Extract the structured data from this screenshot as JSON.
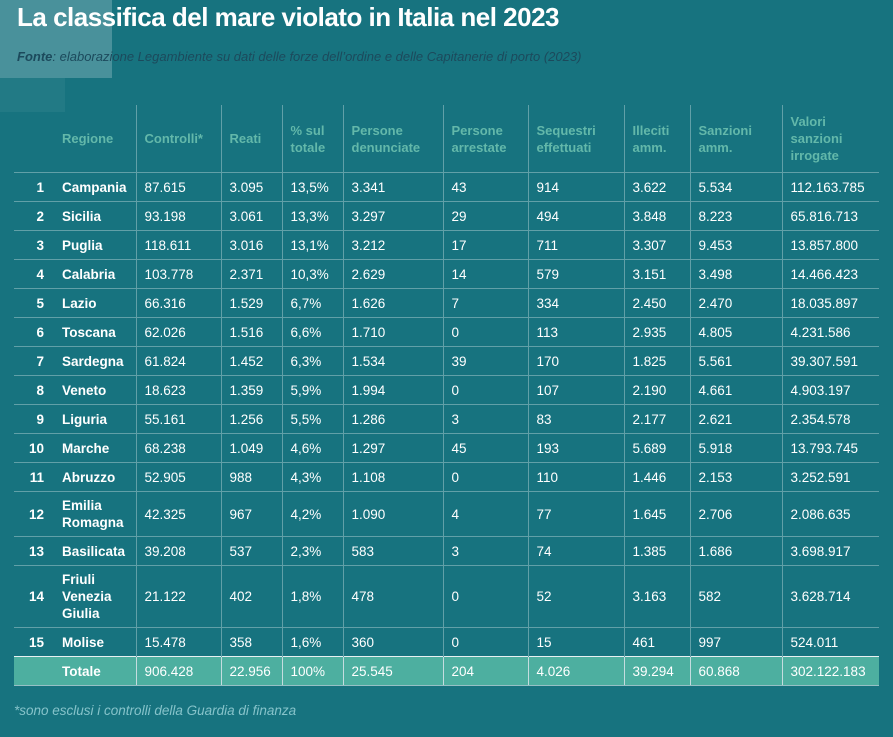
{
  "header": {
    "title": "La classifica del mare violato in Italia nel 2023",
    "source_label": "Fonte",
    "source_text": ": elaborazione Legambiente su dati delle forze dell’ordine e delle Capitanerie di porto (2023)"
  },
  "footer": {
    "note": "*sono esclusi i controlli della Guardia di finanza"
  },
  "colors": {
    "background": "#17737f",
    "title_highlight_box": "#4d96a1",
    "title_text": "#ffffff",
    "source_text": "#1c4a5c",
    "header_text": "#63b8aa",
    "cell_text": "#ffffff",
    "grid_line": "#5a9fab",
    "total_row_background": "#4dafa0",
    "footnote_text": "#86c3ca"
  },
  "chart_data": {
    "type": "table",
    "columns": [
      "Regione",
      "Controlli*",
      "Reati",
      "% sul totale",
      "Persone denunciate",
      "Persone arrestate",
      "Sequestri effettuati",
      "Illeciti amm.",
      "Sanzioni amm.",
      "Valori sanzioni irrogate"
    ],
    "rows": [
      {
        "rank": "1",
        "regione": "Campania",
        "values": [
          "87.615",
          "3.095",
          "13,5%",
          "3.341",
          "43",
          "914",
          "3.622",
          "5.534",
          "112.163.785"
        ]
      },
      {
        "rank": "2",
        "regione": "Sicilia",
        "values": [
          "93.198",
          "3.061",
          "13,3%",
          "3.297",
          "29",
          "494",
          "3.848",
          "8.223",
          "65.816.713"
        ]
      },
      {
        "rank": "3",
        "regione": "Puglia",
        "values": [
          "118.611",
          "3.016",
          "13,1%",
          "3.212",
          "17",
          "711",
          "3.307",
          "9.453",
          "13.857.800"
        ]
      },
      {
        "rank": "4",
        "regione": "Calabria",
        "values": [
          "103.778",
          "2.371",
          "10,3%",
          "2.629",
          "14",
          "579",
          "3.151",
          "3.498",
          "14.466.423"
        ]
      },
      {
        "rank": "5",
        "regione": "Lazio",
        "values": [
          "66.316",
          "1.529",
          "6,7%",
          "1.626",
          "7",
          "334",
          "2.450",
          "2.470",
          "18.035.897"
        ]
      },
      {
        "rank": "6",
        "regione": "Toscana",
        "values": [
          "62.026",
          "1.516",
          "6,6%",
          "1.710",
          "0",
          "113",
          "2.935",
          "4.805",
          "4.231.586"
        ]
      },
      {
        "rank": "7",
        "regione": "Sardegna",
        "values": [
          "61.824",
          "1.452",
          "6,3%",
          "1.534",
          "39",
          "170",
          "1.825",
          "5.561",
          "39.307.591"
        ]
      },
      {
        "rank": "8",
        "regione": "Veneto",
        "values": [
          "18.623",
          "1.359",
          "5,9%",
          "1.994",
          "0",
          "107",
          "2.190",
          "4.661",
          "4.903.197"
        ]
      },
      {
        "rank": "9",
        "regione": "Liguria",
        "values": [
          "55.161",
          "1.256",
          "5,5%",
          "1.286",
          "3",
          "83",
          "2.177",
          "2.621",
          "2.354.578"
        ]
      },
      {
        "rank": "10",
        "regione": "Marche",
        "values": [
          "68.238",
          "1.049",
          "4,6%",
          "1.297",
          "45",
          "193",
          "5.689",
          "5.918",
          "13.793.745"
        ]
      },
      {
        "rank": "11",
        "regione": "Abruzzo",
        "values": [
          "52.905",
          "988",
          "4,3%",
          "1.108",
          "0",
          "110",
          "1.446",
          "2.153",
          "3.252.591"
        ]
      },
      {
        "rank": "12",
        "regione": "Emilia Romagna",
        "values": [
          "42.325",
          "967",
          "4,2%",
          "1.090",
          "4",
          "77",
          "1.645",
          "2.706",
          "2.086.635"
        ]
      },
      {
        "rank": "13",
        "regione": "Basilicata",
        "values": [
          "39.208",
          "537",
          "2,3%",
          "583",
          "3",
          "74",
          "1.385",
          "1.686",
          "3.698.917"
        ]
      },
      {
        "rank": "14",
        "regione": "Friuli Venezia Giulia",
        "values": [
          "21.122",
          "402",
          "1,8%",
          "478",
          "0",
          "52",
          "3.163",
          "582",
          "3.628.714"
        ]
      },
      {
        "rank": "15",
        "regione": "Molise",
        "values": [
          "15.478",
          "358",
          "1,6%",
          "360",
          "0",
          "15",
          "461",
          "997",
          "524.011"
        ]
      }
    ],
    "total": {
      "label": "Totale",
      "values": [
        "906.428",
        "22.956",
        "100%",
        "25.545",
        "204",
        "4.026",
        "39.294",
        "60.868",
        "302.122.183"
      ]
    }
  }
}
